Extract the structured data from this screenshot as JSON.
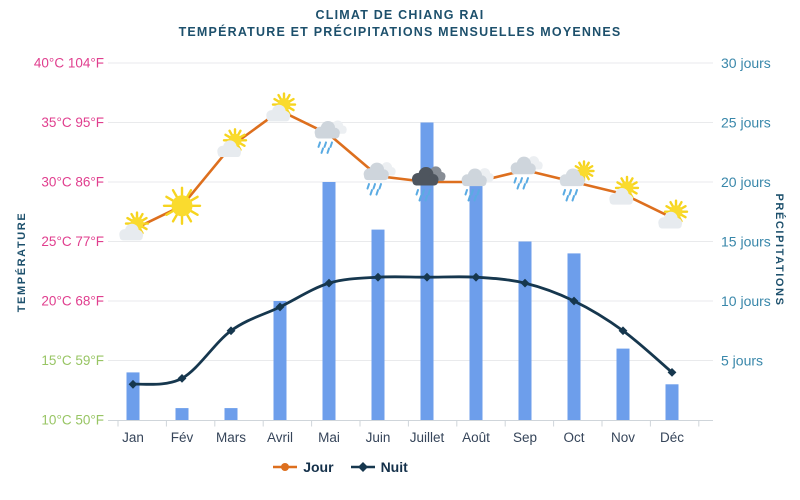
{
  "chart_data": {
    "type": "composite",
    "title": "CLIMAT DE CHIANG RAI",
    "subtitle": "TEMPÉRATURE ET PRÉCIPITATIONS MENSUELLES MOYENNES",
    "categories": [
      "Jan",
      "Fév",
      "Mars",
      "Avril",
      "Mai",
      "Juin",
      "Juillet",
      "Août",
      "Sep",
      "Oct",
      "Nov",
      "Déc"
    ],
    "series": [
      {
        "name": "Jour",
        "type": "line",
        "axis": "temperature",
        "unit": "°C",
        "color": "#dd6f1e",
        "values": [
          26,
          28,
          33,
          36,
          34,
          30.5,
          30,
          30,
          31,
          30,
          29,
          27
        ]
      },
      {
        "name": "Nuit",
        "type": "line",
        "axis": "temperature",
        "unit": "°C",
        "color": "#16374e",
        "values": [
          13,
          13.5,
          17.5,
          19.5,
          21.5,
          22,
          22,
          22,
          21.5,
          20,
          17.5,
          14
        ]
      },
      {
        "name": "Précipitations",
        "type": "bar",
        "axis": "precipitation",
        "unit": "jours",
        "color": "#6d9eeb",
        "values": [
          4,
          1,
          1,
          10,
          20,
          16,
          25,
          20,
          15,
          14,
          6,
          3
        ]
      }
    ],
    "weather_icons": [
      "partly-sunny",
      "sunny",
      "partly-sunny",
      "partly-sunny",
      "rainy",
      "rainy",
      "rainy-dark",
      "rainy",
      "rainy",
      "rain-sun",
      "partly-sunny",
      "partly-sunny"
    ],
    "axes": {
      "temperature": {
        "title": "TEMPÉRATURE",
        "range": [
          10,
          40
        ],
        "ticks": [
          {
            "label": "40°C 104°F",
            "value": 40,
            "color": "#e03e8e"
          },
          {
            "label": "35°C 95°F",
            "value": 35,
            "color": "#e03e8e"
          },
          {
            "label": "30°C 86°F",
            "value": 30,
            "color": "#e03e8e"
          },
          {
            "label": "25°C 77°F",
            "value": 25,
            "color": "#e03e8e"
          },
          {
            "label": "20°C 68°F",
            "value": 20,
            "color": "#e03e8e"
          },
          {
            "label": "15°C 59°F",
            "value": 15,
            "color": "#98c564"
          },
          {
            "label": "10°C 50°F",
            "value": 10,
            "color": "#98c564"
          }
        ]
      },
      "precipitation": {
        "title": "PRÉCIPITATIONS",
        "range": [
          0,
          30
        ],
        "color": "#3987aa",
        "ticks": [
          {
            "label": "30 jours",
            "value": 30
          },
          {
            "label": "25 jours",
            "value": 25
          },
          {
            "label": "20 jours",
            "value": 20
          },
          {
            "label": "15 jours",
            "value": 15
          },
          {
            "label": "10 jours",
            "value": 10
          },
          {
            "label": "5 jours",
            "value": 5
          }
        ]
      }
    },
    "legend": [
      {
        "label": "Jour",
        "color": "#dd6f1e",
        "marker": "dot"
      },
      {
        "label": "Nuit",
        "color": "#16374e",
        "marker": "diamond"
      }
    ],
    "grid": true,
    "colors": {
      "grid": "#e9eaec",
      "axis_line": "#cfd5da",
      "month_label": "#36455a",
      "title": "#1d506c"
    }
  }
}
